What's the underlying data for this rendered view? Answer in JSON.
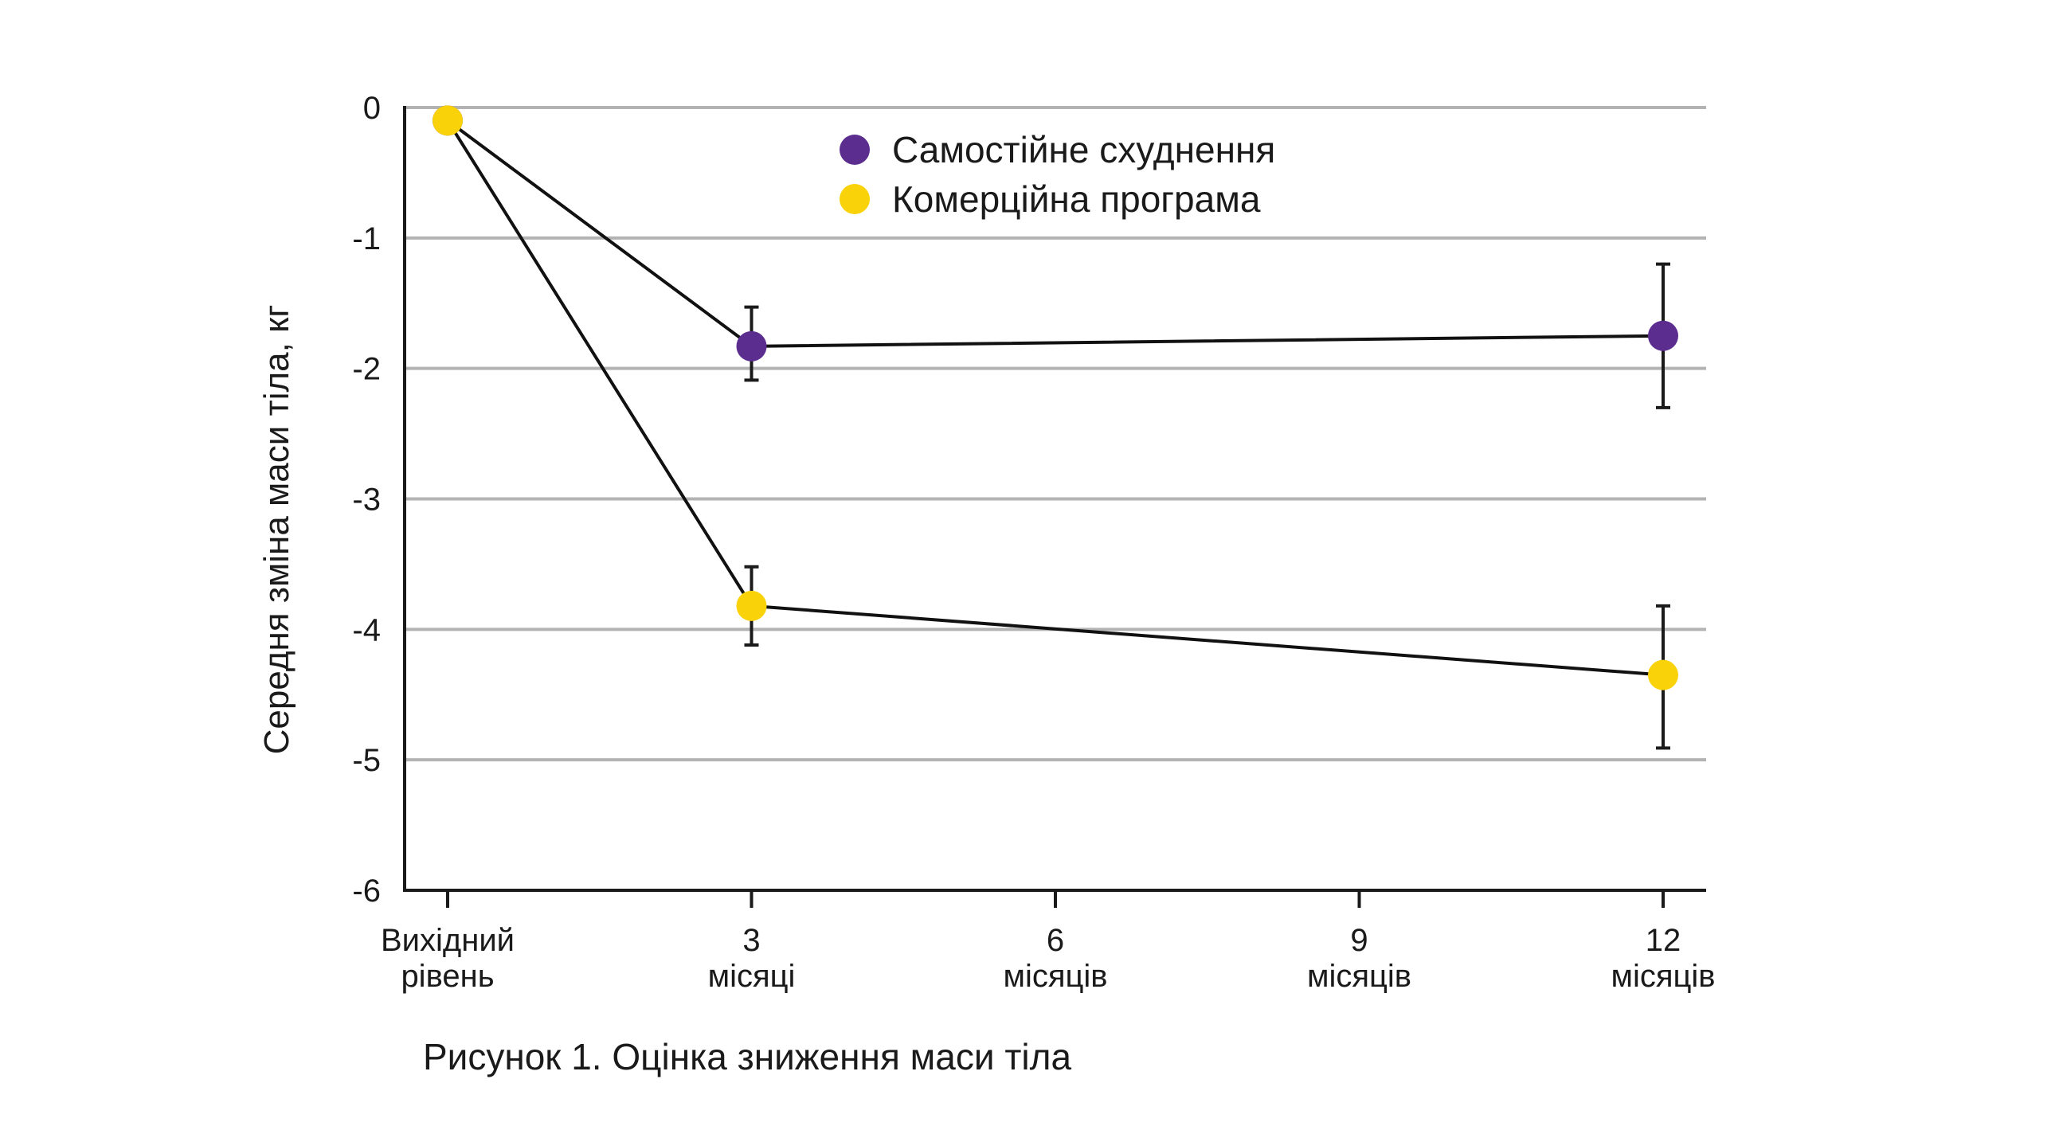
{
  "chart_data": {
    "type": "line",
    "caption": "Рисунок 1. Оцінка зниження маси тіла",
    "ylabel": "Середня зміна маси тіла, кг",
    "xlabel": "",
    "ylim": [
      -6,
      0
    ],
    "yticks": [
      0,
      -1,
      -2,
      -3,
      -4,
      -5,
      -6
    ],
    "ytick_labels": [
      "0",
      "-1",
      "-2",
      "-3",
      "-4",
      "-5",
      "-6"
    ],
    "xlim": [
      -0.5,
      12.5
    ],
    "xticks": [
      {
        "x": 0,
        "lines": [
          "Вихідний",
          "рівень"
        ]
      },
      {
        "x": 3,
        "lines": [
          "3",
          "місяці"
        ]
      },
      {
        "x": 6,
        "lines": [
          "6",
          "місяців"
        ]
      },
      {
        "x": 9,
        "lines": [
          "9",
          "місяців"
        ]
      },
      {
        "x": 12,
        "lines": [
          "12",
          "місяців"
        ]
      }
    ],
    "grid": true,
    "legend_position": "top-center",
    "series": [
      {
        "name": "Самостійне схуднення",
        "color": "#5b2d8f",
        "points": [
          {
            "x": 0,
            "y": -0.1
          },
          {
            "x": 3,
            "y": -1.83,
            "err_low": -2.09,
            "err_high": -1.53
          },
          {
            "x": 12,
            "y": -1.75,
            "err_low": -2.3,
            "err_high": -1.2
          }
        ]
      },
      {
        "name": "Комерційна програма",
        "color": "#f9d20a",
        "points": [
          {
            "x": 0,
            "y": -0.1
          },
          {
            "x": 3,
            "y": -3.82,
            "err_low": -4.12,
            "err_high": -3.52
          },
          {
            "x": 12,
            "y": -4.35,
            "err_low": -4.91,
            "err_high": -3.82
          }
        ]
      }
    ]
  }
}
